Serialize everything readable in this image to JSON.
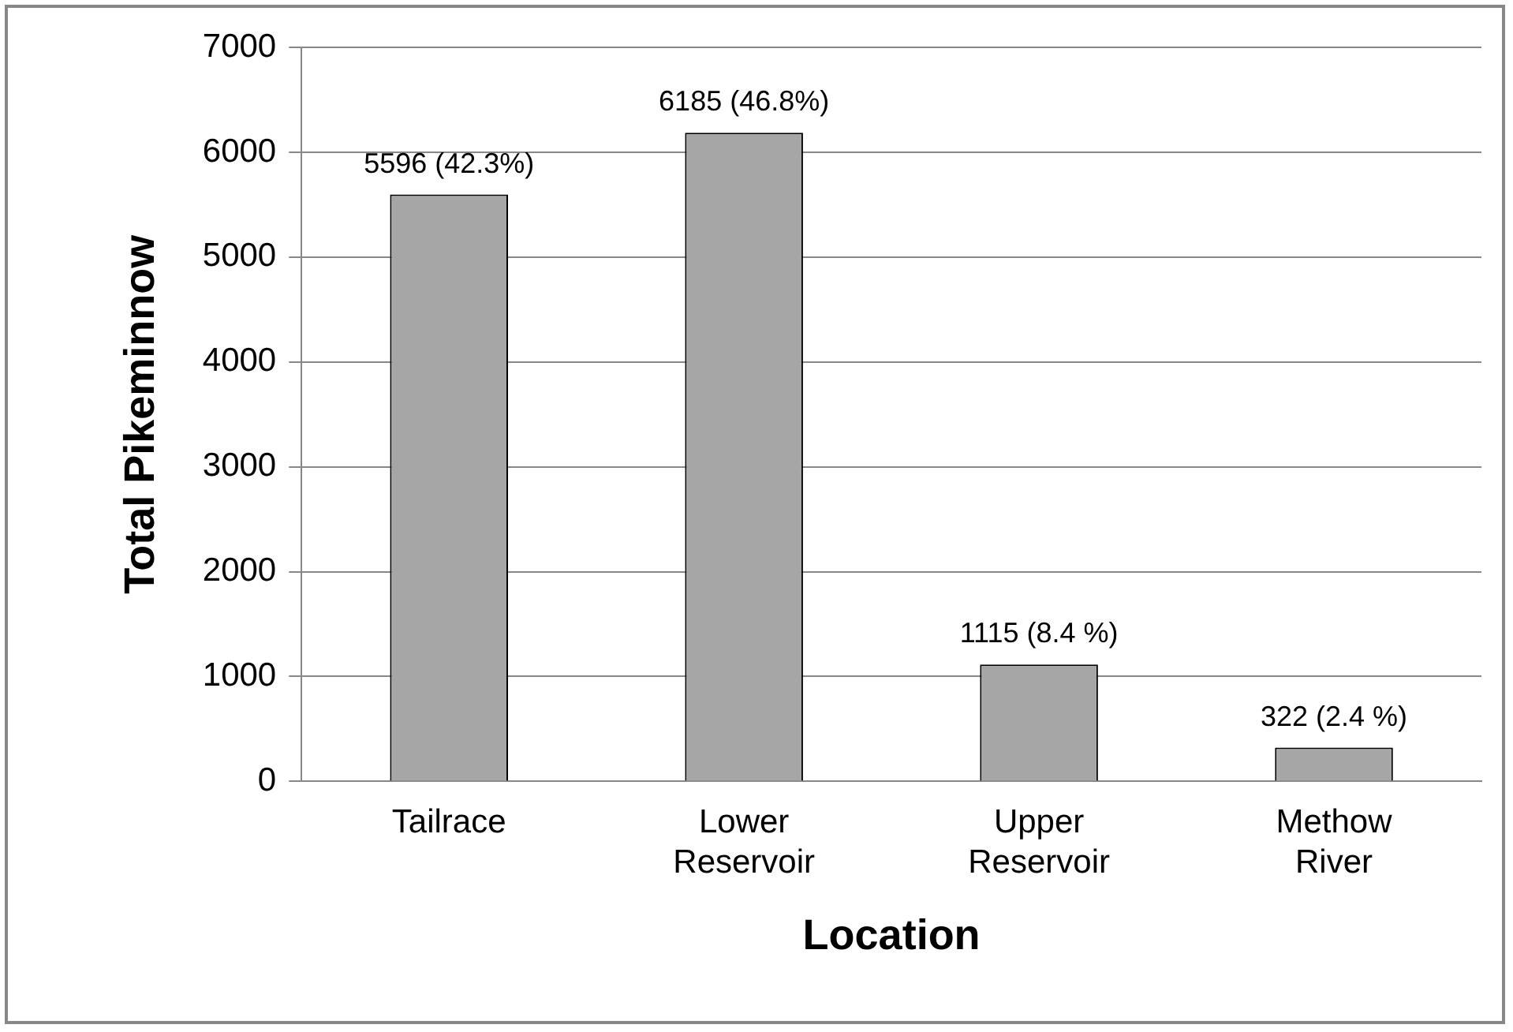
{
  "chart_data": {
    "type": "bar",
    "xlabel": "Location",
    "ylabel": "Total Pikeminnow",
    "categories": [
      "Tailrace",
      "Lower Reservoir",
      "Upper Reservoir",
      "Methow River"
    ],
    "values": [
      5596,
      6185,
      1115,
      322
    ],
    "color": "#a6a6a6",
    "value_labels": [
      "5596 (42.3%)",
      "6185 (46.8%)",
      "1115 (8.4 %)",
      "322 (2.4 %)"
    ],
    "ylim": [
      0,
      7000
    ],
    "yticks": [
      0,
      1000,
      2000,
      3000,
      4000,
      5000,
      6000,
      7000
    ],
    "grid": "y",
    "legend": false
  }
}
